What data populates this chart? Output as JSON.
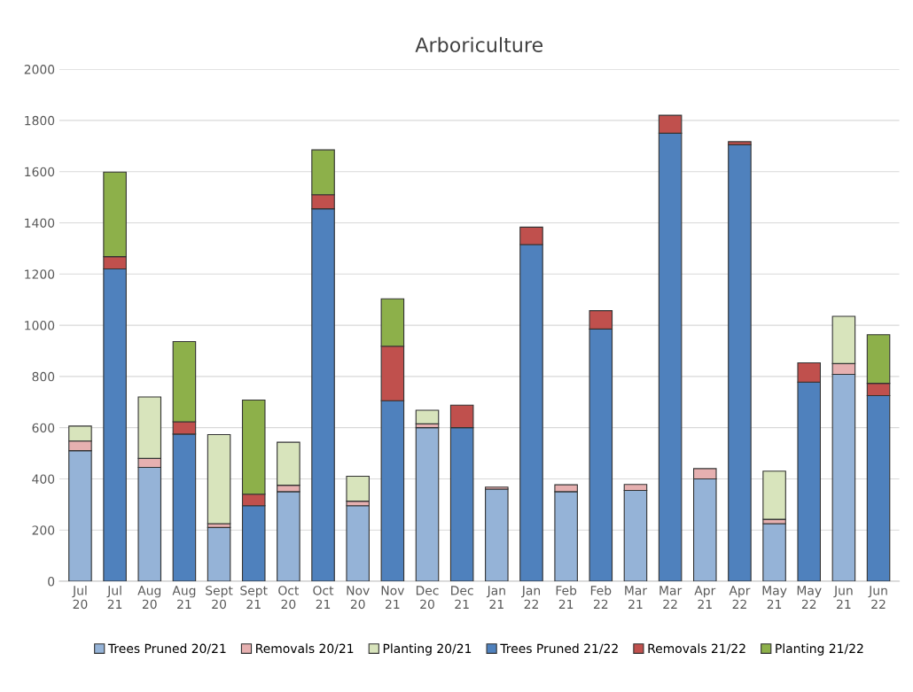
{
  "chart_data": {
    "type": "bar",
    "title": "Arboriculture",
    "stacked": true,
    "categories": [
      "Jul\n20",
      "Jul\n21",
      "Aug\n20",
      "Aug\n21",
      "Sept\n20",
      "Sept\n21",
      "Oct\n20",
      "Oct\n21",
      "Nov\n20",
      "Nov\n21",
      "Dec\n20",
      "Dec\n21",
      "Jan\n21",
      "Jan\n22",
      "Feb\n21",
      "Feb\n22",
      "Mar\n21",
      "Mar\n22",
      "Apr\n21",
      "Apr\n22",
      "May\n21",
      "May\n22",
      "Jun\n21",
      "Jun\n22"
    ],
    "series": [
      {
        "name": "Trees Pruned 20/21",
        "color": "#95b3d7",
        "values": [
          510,
          null,
          445,
          null,
          210,
          null,
          350,
          null,
          295,
          null,
          600,
          null,
          360,
          null,
          350,
          null,
          355,
          null,
          400,
          null,
          225,
          null,
          808,
          null
        ]
      },
      {
        "name": "Removals 20/21",
        "color": "#e6b0b0",
        "values": [
          38,
          null,
          35,
          null,
          15,
          null,
          25,
          null,
          18,
          null,
          15,
          null,
          8,
          null,
          27,
          null,
          23,
          null,
          40,
          null,
          17,
          null,
          42,
          null
        ]
      },
      {
        "name": "Planting 20/21",
        "color": "#d8e4bc",
        "values": [
          58,
          null,
          240,
          null,
          348,
          null,
          168,
          null,
          97,
          null,
          53,
          null,
          null,
          null,
          null,
          null,
          null,
          null,
          null,
          null,
          188,
          null,
          185,
          null
        ]
      },
      {
        "name": "Trees Pruned 21/22",
        "color": "#4f81bd",
        "values": [
          null,
          1220,
          null,
          575,
          null,
          295,
          null,
          1455,
          null,
          705,
          null,
          600,
          null,
          1315,
          null,
          985,
          null,
          1750,
          null,
          1705,
          null,
          778,
          null,
          725
        ]
      },
      {
        "name": "Removals 21/22",
        "color": "#c0504d",
        "values": [
          null,
          48,
          null,
          48,
          null,
          45,
          null,
          55,
          null,
          213,
          null,
          88,
          null,
          68,
          null,
          72,
          null,
          70,
          null,
          12,
          null,
          75,
          null,
          48
        ]
      },
      {
        "name": "Planting 21/22",
        "color": "#8db04a",
        "values": [
          null,
          330,
          null,
          313,
          null,
          368,
          null,
          175,
          null,
          185,
          null,
          null,
          null,
          null,
          null,
          null,
          null,
          null,
          null,
          null,
          null,
          null,
          null,
          190
        ]
      }
    ],
    "ylim": [
      0,
      2000
    ],
    "yticks": [
      0,
      200,
      400,
      600,
      800,
      1000,
      1200,
      1400,
      1600,
      1800,
      2000
    ],
    "grid": "y",
    "legend": "bottom"
  }
}
